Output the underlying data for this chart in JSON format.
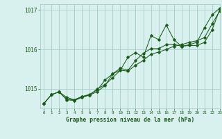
{
  "title": "Graphe pression niveau de la mer (hPa)",
  "bg_color": "#d8f0ee",
  "plot_bg_color": "#d8f0ee",
  "grid_color": "#a8cfc8",
  "line_color": "#1a5c1a",
  "xlim": [
    -0.5,
    23
  ],
  "ylim": [
    1014.5,
    1017.15
  ],
  "yticks": [
    1015,
    1016,
    1017
  ],
  "xticks": [
    0,
    1,
    2,
    3,
    4,
    5,
    6,
    7,
    8,
    9,
    10,
    11,
    12,
    13,
    14,
    15,
    16,
    17,
    18,
    19,
    20,
    21,
    22,
    23
  ],
  "series1": {
    "x": [
      0,
      1,
      2,
      3,
      4,
      5,
      6,
      7,
      8,
      9,
      10,
      11,
      12,
      13,
      14,
      15,
      16,
      17,
      18,
      19,
      20,
      21,
      22,
      23
    ],
    "y": [
      1014.62,
      1014.85,
      1014.92,
      1014.78,
      1014.72,
      1014.8,
      1014.84,
      1015.0,
      1015.1,
      1015.28,
      1015.47,
      1015.45,
      1015.6,
      1015.72,
      1015.88,
      1015.93,
      1016.0,
      1016.08,
      1016.12,
      1016.18,
      1016.22,
      1016.3,
      1016.65,
      1016.98
    ]
  },
  "series2": {
    "x": [
      0,
      1,
      2,
      3,
      4,
      5,
      6,
      7,
      8,
      9,
      10,
      11,
      12,
      13,
      14,
      15,
      16,
      17,
      18,
      19,
      20,
      21,
      22,
      23
    ],
    "y": [
      1014.62,
      1014.85,
      1014.92,
      1014.72,
      1014.7,
      1014.78,
      1014.84,
      1014.93,
      1015.08,
      1015.38,
      1015.47,
      1015.8,
      1015.92,
      1015.8,
      1016.35,
      1016.25,
      1016.62,
      1016.25,
      1016.08,
      1016.12,
      1016.18,
      1016.55,
      1016.88,
      1017.05
    ]
  },
  "series3": {
    "x": [
      0,
      1,
      2,
      3,
      4,
      5,
      6,
      7,
      8,
      9,
      10,
      11,
      12,
      13,
      14,
      15,
      16,
      17,
      18,
      19,
      20,
      21,
      22,
      23
    ],
    "y": [
      1014.62,
      1014.85,
      1014.92,
      1014.73,
      1014.72,
      1014.8,
      1014.86,
      1014.97,
      1015.22,
      1015.38,
      1015.52,
      1015.47,
      1015.72,
      1015.9,
      1016.02,
      1016.02,
      1016.12,
      1016.13,
      1016.08,
      1016.1,
      1016.1,
      1016.18,
      1016.5,
      1017.02
    ]
  }
}
